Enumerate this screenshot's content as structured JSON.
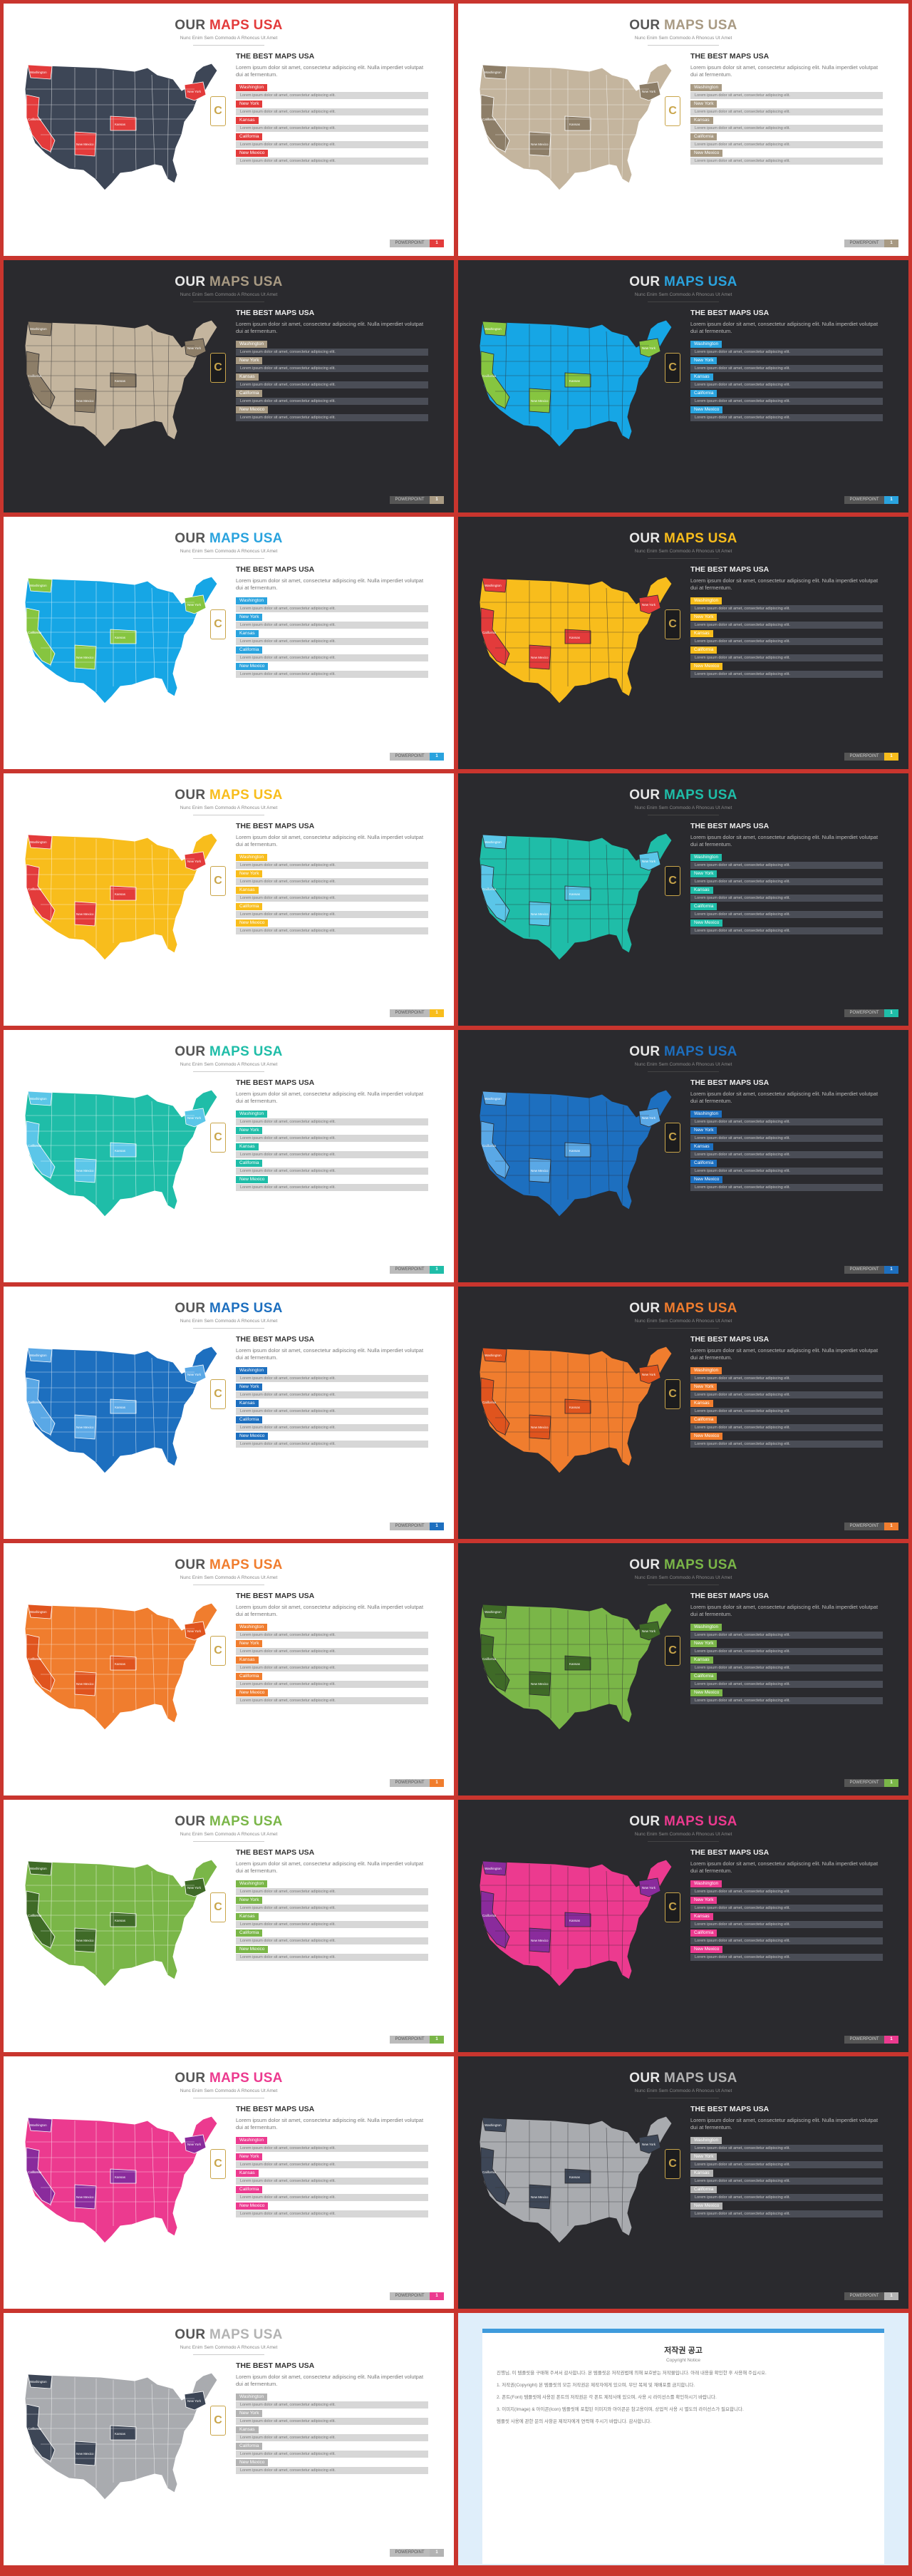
{
  "common": {
    "title_prefix": "OUR",
    "title_accent": "MAPS USA",
    "subtitle": "Nunc Enim Sem Commodo A Rhoncus Ut Amet",
    "panel_heading": "THE BEST MAPS USA",
    "panel_desc": "Lorem ipsum dolor sit amet, consectetur adipiscing elit. Nulla imperdiet volutpat dui at fermentum.",
    "list_text": "Lorem ipsum dolor sit amet, consectetur adipiscing elit.",
    "tags": [
      "Washington",
      "New York",
      "Kansas",
      "California",
      "New Mexico"
    ],
    "badge": "C",
    "footer_label": "POWERPOINT",
    "footer_page": "1"
  },
  "slides": [
    {
      "theme": "light",
      "accent": "#e33b3b",
      "base": "#3d4656",
      "hi": "#e33b3b",
      "border": "#ffffff"
    },
    {
      "theme": "light",
      "accent": "#a89a83",
      "base": "#c4b59e",
      "hi": "#8d7e68",
      "border": "#ffffff"
    },
    {
      "theme": "dark",
      "accent": "#a89a83",
      "base": "#c4b59e",
      "hi": "#8d7e68",
      "border": "#2a2a2e"
    },
    {
      "theme": "dark",
      "accent": "#2aa3de",
      "base": "#16a6e5",
      "hi": "#86c540",
      "border": "#2a2a2e"
    },
    {
      "theme": "light",
      "accent": "#2aa3de",
      "base": "#16a6e5",
      "hi": "#86c540",
      "border": "#ffffff"
    },
    {
      "theme": "dark",
      "accent": "#f8bd1c",
      "base": "#f8bd1c",
      "hi": "#e33b3b",
      "border": "#2a2a2e"
    },
    {
      "theme": "light",
      "accent": "#f8bd1c",
      "base": "#f8bd1c",
      "hi": "#e33b3b",
      "border": "#ffffff"
    },
    {
      "theme": "dark",
      "accent": "#1fbda8",
      "base": "#1fbda8",
      "hi": "#5bc6e8",
      "border": "#2a2a2e"
    },
    {
      "theme": "light",
      "accent": "#1fbda8",
      "base": "#1fbda8",
      "hi": "#5bc6e8",
      "border": "#ffffff"
    },
    {
      "theme": "dark",
      "accent": "#1d6fbf",
      "base": "#1d6fbf",
      "hi": "#5aa8e6",
      "border": "#2a2a2e"
    },
    {
      "theme": "light",
      "accent": "#1d6fbf",
      "base": "#1d6fbf",
      "hi": "#5aa8e6",
      "border": "#ffffff"
    },
    {
      "theme": "dark",
      "accent": "#f07d2e",
      "base": "#f07d2e",
      "hi": "#e0541e",
      "border": "#2a2a2e"
    },
    {
      "theme": "light",
      "accent": "#f07d2e",
      "base": "#f07d2e",
      "hi": "#e0541e",
      "border": "#ffffff"
    },
    {
      "theme": "dark",
      "accent": "#7ab648",
      "base": "#7ab648",
      "hi": "#3f6a27",
      "border": "#2a2a2e"
    },
    {
      "theme": "light",
      "accent": "#7ab648",
      "base": "#7ab648",
      "hi": "#3f6a27",
      "border": "#ffffff"
    },
    {
      "theme": "dark",
      "accent": "#ec3a8f",
      "base": "#ec3a8f",
      "hi": "#8a2b9c",
      "border": "#2a2a2e"
    },
    {
      "theme": "light",
      "accent": "#ec3a8f",
      "base": "#ec3a8f",
      "hi": "#8a2b9c",
      "border": "#ffffff"
    },
    {
      "theme": "dark",
      "accent": "#b3b3b3",
      "base": "#a9abaf",
      "hi": "#3d4656",
      "border": "#2a2a2e"
    },
    {
      "theme": "light",
      "accent": "#b3b3b3",
      "base": "#a9abaf",
      "hi": "#3d4656",
      "border": "#ffffff"
    }
  ],
  "notice": {
    "title": "저작권 공고",
    "subtitle": "Copyright Notice",
    "intro": "진행님, 이 템플릿을 구매해 주셔서 감사합니다. 본 템플릿은 저작권법에 의해 보호받는 저작물입니다. 아래 내용을 확인한 후 사용해 주십시오.",
    "items": [
      "1. 저작권(Copyright) 본 템플릿의 모든 저작권은 제작자에게 있으며, 무단 복제 및 재배포를 금지합니다.",
      "2. 폰트(Font) 템플릿에 사용된 폰트의 저작권은 각 폰트 제작사에 있으며, 사용 시 라이선스를 확인하시기 바랍니다.",
      "3. 이미지(Image) & 아이콘(Icon) 템플릿에 포함된 이미지와 아이콘은 참고용이며, 상업적 사용 시 별도의 라이선스가 필요합니다."
    ],
    "outro": "템플릿 사용에 관한 문의 사항은 제작자에게 연락해 주시기 바랍니다. 감사합니다."
  }
}
